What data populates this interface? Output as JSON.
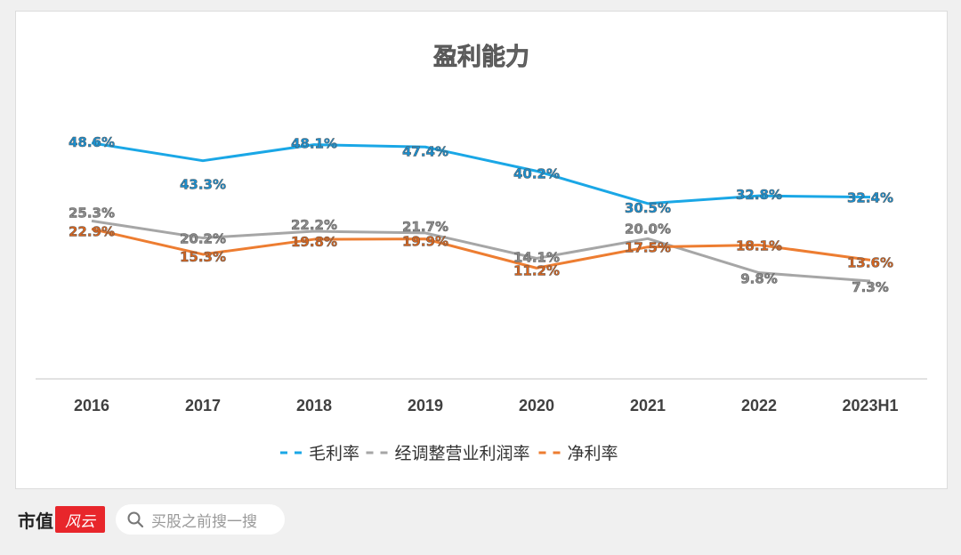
{
  "chart_data": {
    "type": "line",
    "title": "盈利能力",
    "xlabel": "",
    "ylabel": "",
    "categories": [
      "2016",
      "2017",
      "2018",
      "2019",
      "2020",
      "2021",
      "2022",
      "2023H1"
    ],
    "ylim": [
      0,
      60
    ],
    "grid": false,
    "legend_position": "bottom",
    "series": [
      {
        "name": "毛利率",
        "color": "#1aa7e6",
        "values": [
          48.6,
          43.3,
          48.1,
          47.4,
          40.2,
          30.5,
          32.8,
          32.4
        ],
        "labels": [
          "48.6%",
          "43.3%",
          "48.1%",
          "47.4%",
          "40.2%",
          "30.5%",
          "32.8%",
          "32.4%"
        ]
      },
      {
        "name": "经调整营业利润率",
        "color": "#a6a6a6",
        "values": [
          25.3,
          20.2,
          22.2,
          21.7,
          14.1,
          20.0,
          9.8,
          7.3
        ],
        "labels": [
          "25.3%",
          "20.2%",
          "22.2%",
          "21.7%",
          "14.1%",
          "20.0%",
          "9.8%",
          "7.3%"
        ]
      },
      {
        "name": "净利率",
        "color": "#ed7d31",
        "values": [
          22.9,
          15.3,
          19.8,
          19.9,
          11.2,
          17.5,
          18.1,
          13.6
        ],
        "labels": [
          "22.9%",
          "15.3%",
          "19.8%",
          "19.9%",
          "11.2%",
          "17.5%",
          "18.1%",
          "13.6%"
        ]
      }
    ]
  },
  "footer": {
    "brand": "市值",
    "brand_mark": "风云",
    "search_icon": "search-icon",
    "search_placeholder": "买股之前搜一搜"
  }
}
